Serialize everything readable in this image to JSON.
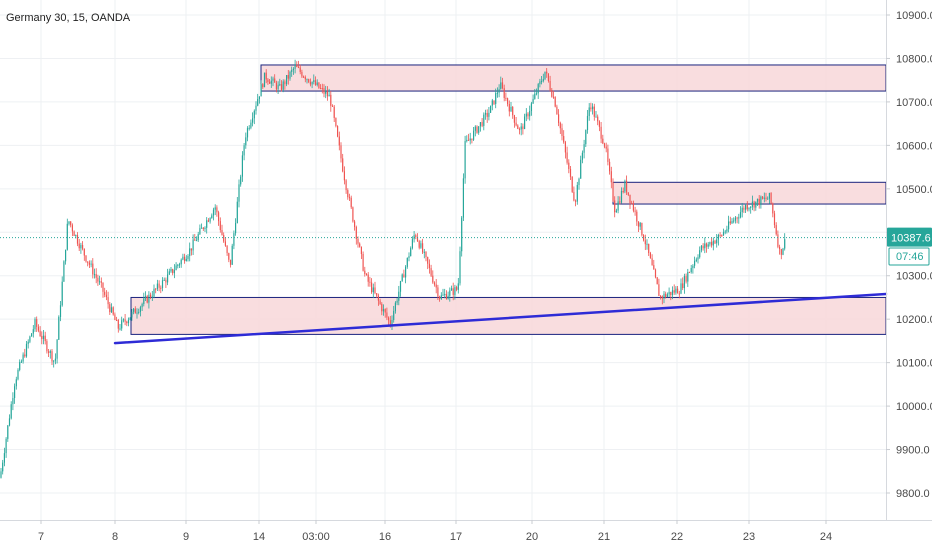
{
  "header": {
    "symbol_title": "Germany 30, 15, OANDA"
  },
  "price_badge": {
    "value": "10387.6",
    "countdown": "07:46",
    "color": "#26a69a"
  },
  "colors": {
    "up": "#26a69a",
    "down": "#ef5350",
    "zone_fill": "#f8d7d9",
    "zone_stroke": "#1a237e",
    "trendline": "#2e2bd6",
    "price_line": "#26a69a",
    "grid": "#eef0f3"
  },
  "chart_data": {
    "type": "candlestick",
    "y_axis": {
      "range": [
        9740,
        10940
      ],
      "ticks": [
        "10900.0",
        "10800.0",
        "10700.0",
        "10600.0",
        "10500.0",
        "10400.0",
        "10300.0",
        "10200.0",
        "10100.0",
        "10000.0",
        "9900.0",
        "9800.0"
      ]
    },
    "x_axis": {
      "ticks": [
        "7",
        "8",
        "9",
        "14",
        "03:00",
        "16",
        "17",
        "20",
        "21",
        "22",
        "23",
        "24"
      ]
    },
    "current_price": 10387.6,
    "zones": [
      {
        "name": "upper-resistance-zone",
        "from_day": "14",
        "to_day": "24+",
        "low": 10725,
        "high": 10785
      },
      {
        "name": "mid-resistance-zone",
        "from_day": "21",
        "to_day": "24+",
        "low": 10465,
        "high": 10515
      },
      {
        "name": "support-zone",
        "from_day": "8",
        "to_day": "24+",
        "low": 10165,
        "high": 10250
      }
    ],
    "trendline": {
      "start": {
        "day": "8",
        "price": 10145
      },
      "end": {
        "day": "24+",
        "price": 10258
      }
    },
    "price_path": [
      [
        0,
        9835
      ],
      [
        15,
        10060
      ],
      [
        35,
        10190
      ],
      [
        55,
        10100
      ],
      [
        68,
        10430
      ],
      [
        82,
        10360
      ],
      [
        102,
        10270
      ],
      [
        118,
        10180
      ],
      [
        140,
        10230
      ],
      [
        165,
        10290
      ],
      [
        190,
        10360
      ],
      [
        215,
        10460
      ],
      [
        230,
        10320
      ],
      [
        245,
        10620
      ],
      [
        265,
        10760
      ],
      [
        280,
        10730
      ],
      [
        295,
        10780
      ],
      [
        330,
        10710
      ],
      [
        345,
        10520
      ],
      [
        365,
        10300
      ],
      [
        390,
        10190
      ],
      [
        415,
        10400
      ],
      [
        440,
        10250
      ],
      [
        458,
        10270
      ],
      [
        465,
        10600
      ],
      [
        490,
        10680
      ],
      [
        500,
        10740
      ],
      [
        520,
        10630
      ],
      [
        545,
        10770
      ],
      [
        555,
        10700
      ],
      [
        575,
        10470
      ],
      [
        590,
        10700
      ],
      [
        605,
        10600
      ],
      [
        615,
        10450
      ],
      [
        625,
        10510
      ],
      [
        645,
        10380
      ],
      [
        660,
        10250
      ],
      [
        680,
        10270
      ],
      [
        700,
        10360
      ],
      [
        720,
        10390
      ],
      [
        745,
        10460
      ],
      [
        770,
        10480
      ],
      [
        780,
        10350
      ],
      [
        785,
        10380
      ]
    ]
  }
}
